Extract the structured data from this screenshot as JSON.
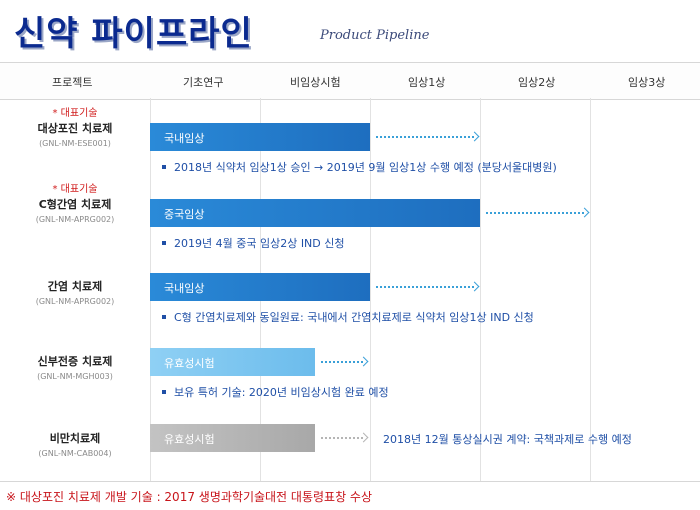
{
  "header": {
    "title": "신약 파이프라인",
    "subtitle": "Product Pipeline"
  },
  "columns": [
    "프로젝트",
    "기초연구",
    "비임상시험",
    "임상1상",
    "임상2상",
    "임상3상"
  ],
  "rows": [
    {
      "tag": "* 대표기술",
      "name": "대상포진 치료제",
      "code": "(GNL-NM-ESE001)",
      "bar_label": "국내임상",
      "note": "2018년 식약처 임상1상 승인 → 2019년 9월 임상1상 수행 예정 (분당서울대병원)"
    },
    {
      "tag": "* 대표기술",
      "name": "C형간염 치료제",
      "code": "(GNL-NM-APRG002)",
      "bar_label": "중국임상",
      "note": "2019년 4월 중국 임상2상 IND 신청"
    },
    {
      "tag": "",
      "name": "간염 치료제",
      "code": "(GNL-NM-APRG002)",
      "bar_label": "국내임상",
      "note": "C형 간염치료제와 동일원료: 국내에서 간염치료제로 식약처 임상1상 IND 신청"
    },
    {
      "tag": "",
      "name": "신부전증 치료제",
      "code": "(GNL-NM-MGH003)",
      "bar_label": "유효성시험",
      "note": "보유 특허 기술: 2020년 비임상시험 완료 예정"
    },
    {
      "tag": "",
      "name": "비만치료제",
      "code": "(GNL-NM-CAB004)",
      "bar_label": "유효성시험",
      "note": "2018년 12월 통상실시권 계약: 국책과제로 수행 예정"
    }
  ],
  "footer": "※ 대상포진 치료제 개발 기술 : 2017 생명과학기술대전 대통령표창 수상",
  "colors": {
    "title": "#0b2a8f",
    "bar_blue": "#1e6ebf",
    "bar_light": "#6cbcec",
    "bar_gray": "#a8a8a8",
    "tag_red": "#d01c1c",
    "note_blue": "#1f4fa6"
  }
}
